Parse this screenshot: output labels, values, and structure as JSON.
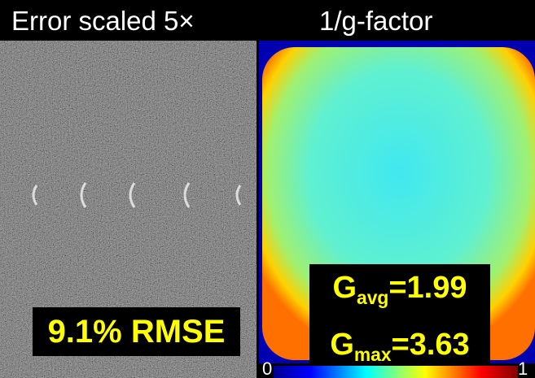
{
  "panels": [
    {
      "title": "Error scaled 5×",
      "label": "9.1% RMSE"
    },
    {
      "title": "1/g-factor"
    }
  ],
  "g_stats": [
    {
      "symbol": "G",
      "subscript": "avg",
      "value": "=1.99"
    },
    {
      "symbol": "G",
      "subscript": "max",
      "value": "=3.63"
    }
  ],
  "colorbar": {
    "min": "0",
    "max": "1"
  }
}
